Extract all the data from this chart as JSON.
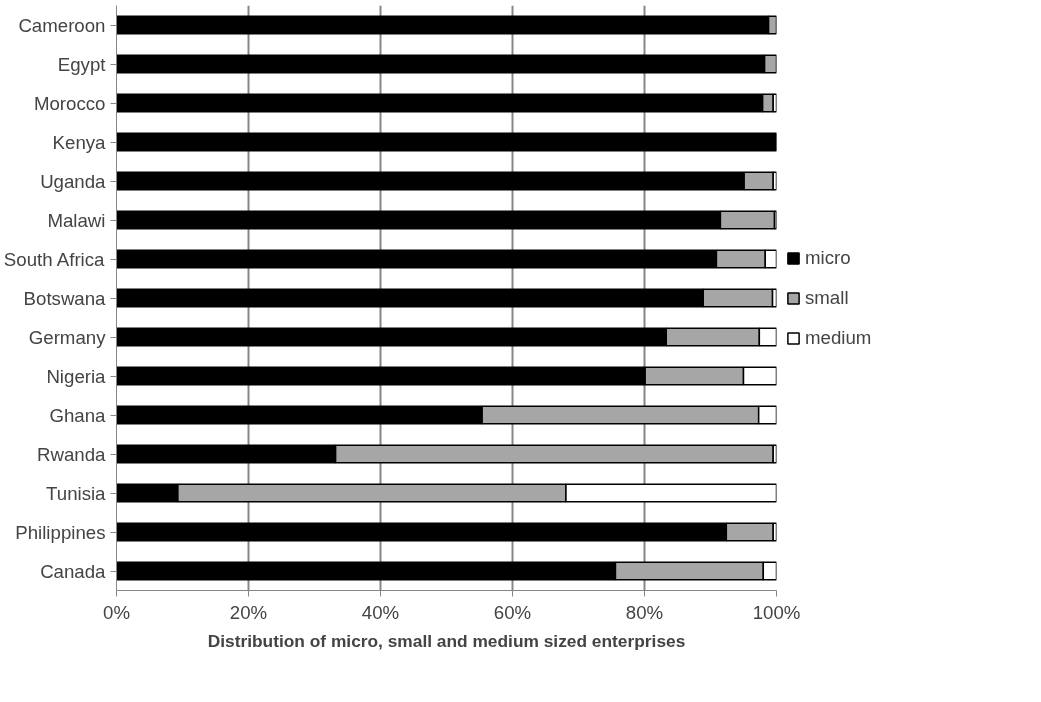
{
  "chart_data": {
    "type": "bar",
    "orientation": "horizontal",
    "stacked": true,
    "xlabel": "Distribution of micro, small and medium sized enterprises",
    "categories": [
      "Cameroon",
      "Egypt",
      "Morocco",
      "Kenya",
      "Uganda",
      "Malawi",
      "South Africa",
      "Botswana",
      "Germany",
      "Nigeria",
      "Ghana",
      "Rwanda",
      "Tunisia",
      "Philippines",
      "Canada"
    ],
    "series": [
      {
        "name": "micro",
        "color": "#000000",
        "values": [
          98.8,
          98.2,
          97.9,
          100,
          95.1,
          91.5,
          90.9,
          88.9,
          83.3,
          80.1,
          55.4,
          33.2,
          9.3,
          92.4,
          75.6
        ]
      },
      {
        "name": "small",
        "color": "#a6a6a6",
        "values": [
          1.2,
          1.8,
          1.6,
          0,
          4.4,
          8.2,
          7.4,
          10.5,
          14.1,
          14.9,
          41.9,
          66.3,
          58.8,
          7.1,
          22.4
        ]
      },
      {
        "name": "medium",
        "color": "#ffffff",
        "values": [
          0,
          0,
          0.5,
          0,
          0.5,
          0.3,
          1.7,
          0.6,
          2.6,
          5.0,
          2.7,
          0.5,
          31.9,
          0.5,
          2.0
        ]
      }
    ],
    "xlim": [
      0,
      100
    ],
    "xticks": [
      {
        "value": 0,
        "label": "0%"
      },
      {
        "value": 20,
        "label": "20%"
      },
      {
        "value": 40,
        "label": "40%"
      },
      {
        "value": 60,
        "label": "60%"
      },
      {
        "value": 80,
        "label": "80%"
      },
      {
        "value": 100,
        "label": "100%"
      }
    ],
    "grid": "x",
    "legend": "right"
  }
}
